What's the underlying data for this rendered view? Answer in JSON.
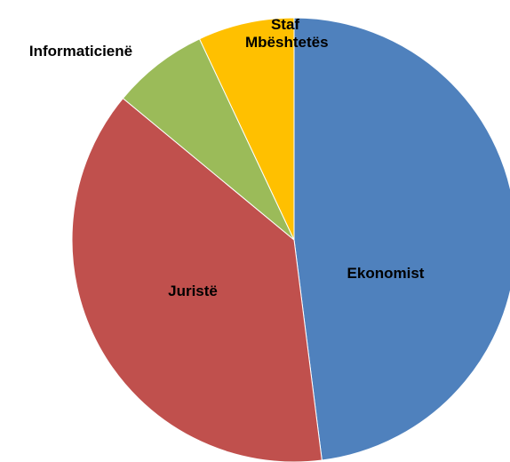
{
  "chart_data": {
    "type": "pie",
    "categories": [
      "Ekonomist",
      "Juristë",
      "Informaticienë",
      "Staf Mbështetës"
    ],
    "values": [
      48,
      38,
      7,
      7
    ],
    "colors": [
      "#4f81bd",
      "#c0504d",
      "#9bbb59",
      "#ffc000"
    ]
  }
}
